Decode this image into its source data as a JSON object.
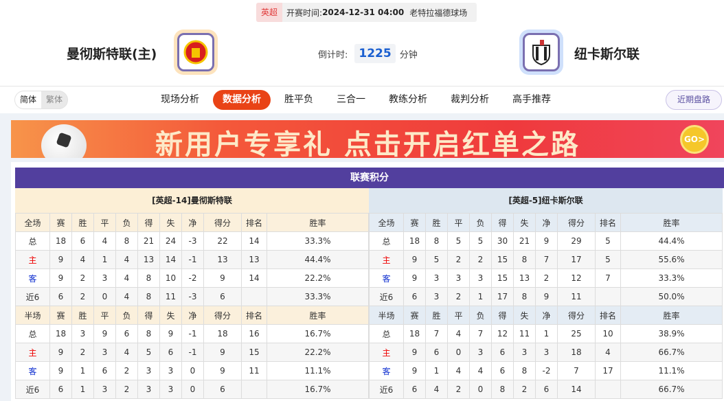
{
  "match": {
    "league": "英超",
    "time_label": "开赛时间:",
    "time": "2024-12-31 04:00",
    "venue": "老特拉福德球场",
    "home": "曼彻斯特联(主)",
    "away": "纽卡斯尔联",
    "countdown_label": "倒计时:",
    "countdown": "1225",
    "countdown_unit": "分钟"
  },
  "nav": {
    "lang": [
      "简体",
      "繁体"
    ],
    "tabs": [
      "现场分析",
      "数据分析",
      "胜平负",
      "三合一",
      "教练分析",
      "裁判分析",
      "高手推荐"
    ],
    "active": "数据分析",
    "recent": "近期盘路"
  },
  "banner": {
    "text": "新用户专享礼 点击开启红单之路",
    "go": "GO>"
  },
  "standings": {
    "title": "联赛积分",
    "columns_full": [
      "全场",
      "赛",
      "胜",
      "平",
      "负",
      "得",
      "失",
      "净",
      "得分",
      "排名",
      "胜率"
    ],
    "columns_half": [
      "半场",
      "赛",
      "胜",
      "平",
      "负",
      "得",
      "失",
      "净",
      "得分",
      "排名",
      "胜率"
    ],
    "home": {
      "title": "[英超-14]曼彻斯特联",
      "full": [
        [
          "总",
          "18",
          "6",
          "4",
          "8",
          "21",
          "24",
          "-3",
          "22",
          "14",
          "33.3%"
        ],
        [
          "主",
          "9",
          "4",
          "1",
          "4",
          "13",
          "14",
          "-1",
          "13",
          "13",
          "44.4%"
        ],
        [
          "客",
          "9",
          "2",
          "3",
          "4",
          "8",
          "10",
          "-2",
          "9",
          "14",
          "22.2%"
        ],
        [
          "近6",
          "6",
          "2",
          "0",
          "4",
          "8",
          "11",
          "-3",
          "6",
          "",
          "33.3%"
        ]
      ],
      "half": [
        [
          "总",
          "18",
          "3",
          "9",
          "6",
          "8",
          "9",
          "-1",
          "18",
          "16",
          "16.7%"
        ],
        [
          "主",
          "9",
          "2",
          "3",
          "4",
          "5",
          "6",
          "-1",
          "9",
          "15",
          "22.2%"
        ],
        [
          "客",
          "9",
          "1",
          "6",
          "2",
          "3",
          "3",
          "0",
          "9",
          "11",
          "11.1%"
        ],
        [
          "近6",
          "6",
          "1",
          "3",
          "2",
          "3",
          "3",
          "0",
          "6",
          "",
          "16.7%"
        ]
      ]
    },
    "away": {
      "title": "[英超-5]纽卡斯尔联",
      "full": [
        [
          "总",
          "18",
          "8",
          "5",
          "5",
          "30",
          "21",
          "9",
          "29",
          "5",
          "44.4%"
        ],
        [
          "主",
          "9",
          "5",
          "2",
          "2",
          "15",
          "8",
          "7",
          "17",
          "5",
          "55.6%"
        ],
        [
          "客",
          "9",
          "3",
          "3",
          "3",
          "15",
          "13",
          "2",
          "12",
          "7",
          "33.3%"
        ],
        [
          "近6",
          "6",
          "3",
          "2",
          "1",
          "17",
          "8",
          "9",
          "11",
          "",
          "50.0%"
        ]
      ],
      "half": [
        [
          "总",
          "18",
          "7",
          "4",
          "7",
          "12",
          "11",
          "1",
          "25",
          "10",
          "38.9%"
        ],
        [
          "主",
          "9",
          "6",
          "0",
          "3",
          "6",
          "3",
          "3",
          "18",
          "4",
          "66.7%"
        ],
        [
          "客",
          "9",
          "1",
          "4",
          "4",
          "6",
          "8",
          "-2",
          "7",
          "17",
          "11.1%"
        ],
        [
          "近6",
          "6",
          "4",
          "2",
          "0",
          "8",
          "2",
          "6",
          "14",
          "",
          "66.7%"
        ]
      ]
    }
  },
  "colors": {
    "accent": "#e94316",
    "purple": "#523f9e",
    "home_red": "#ee0000",
    "away_blue": "#1030d0"
  }
}
